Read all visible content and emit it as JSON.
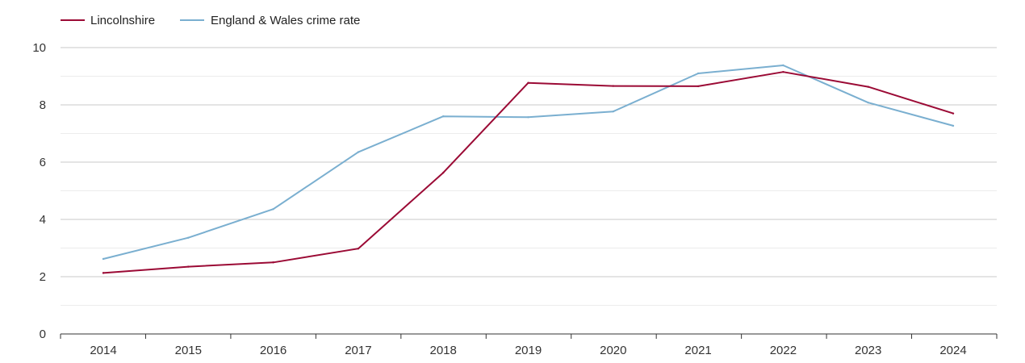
{
  "chart_data": {
    "type": "line",
    "title": "",
    "xlabel": "",
    "ylabel": "",
    "categories": [
      "2014",
      "2015",
      "2016",
      "2017",
      "2018",
      "2019",
      "2020",
      "2021",
      "2022",
      "2023",
      "2024"
    ],
    "ylim": [
      0,
      10
    ],
    "y_ticks": [
      "0",
      "2",
      "4",
      "6",
      "8",
      "10"
    ],
    "grid": true,
    "legend_position": "top-left",
    "series": [
      {
        "name": "Lincolnshire",
        "color": "#9b0a35",
        "values": [
          2.13,
          2.35,
          2.5,
          2.98,
          5.63,
          8.77,
          8.66,
          8.65,
          9.15,
          8.63,
          7.7
        ]
      },
      {
        "name": "England & Wales crime rate",
        "color": "#7aafd0",
        "values": [
          2.62,
          3.36,
          4.36,
          6.35,
          7.6,
          7.57,
          7.77,
          9.1,
          9.38,
          8.08,
          7.27
        ]
      }
    ]
  }
}
